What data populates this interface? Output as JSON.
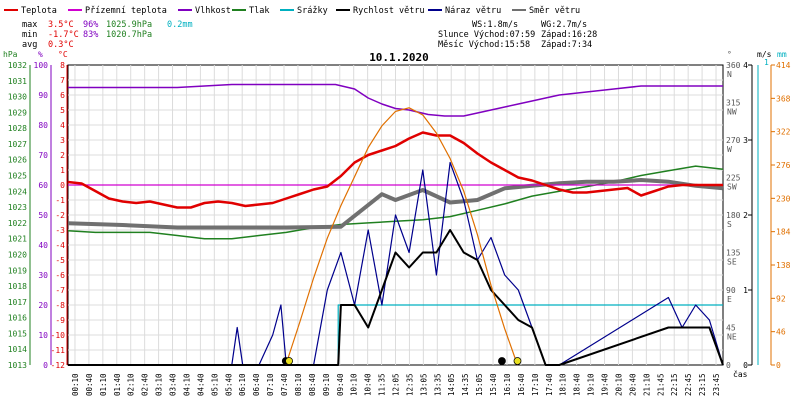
{
  "legend": [
    {
      "label": "Teplota",
      "color": "#e00000"
    },
    {
      "label": "Přízemní teplota",
      "color": "#d000d0"
    },
    {
      "label": "Vlhkost",
      "color": "#8000c0"
    },
    {
      "label": "Tlak",
      "color": "#208020"
    },
    {
      "label": "Srážky",
      "color": "#00b0c0"
    },
    {
      "label": "Rychlost větru",
      "color": "#000000"
    },
    {
      "label": "Náraz větru",
      "color": "#00008c"
    },
    {
      "label": "Směr větru",
      "color": "#707070"
    }
  ],
  "stats": {
    "max_label": "max",
    "max_temp": "3.5°C",
    "max_hum": "96%",
    "max_press": "1025.9hPa",
    "max_rain": "0.2mm",
    "min_label": "min",
    "min_temp": "-1.7°C",
    "min_hum": "83%",
    "min_press": "1020.7hPa",
    "avg_label": "avg",
    "avg_temp": "0.3°C"
  },
  "info": {
    "ws": "WS:1.8m/s",
    "wg": "WG:2.7m/s",
    "sun": "Slunce Východ:07:59",
    "sun_set": "Západ:16:28",
    "moon": "Měsíc  Východ:15:58",
    "moon_set": "Západ:7:34"
  },
  "title": "10.1.2020",
  "axes": {
    "hpa_unit": "hPa",
    "pct_unit": "%",
    "c_unit": "°C",
    "deg_unit": "°",
    "ms_unit": "m/s",
    "mm_unit": "mm",
    "hpa_ticks": [
      "1032",
      "1031",
      "1030",
      "1029",
      "1028",
      "1027",
      "1026",
      "1025",
      "1024",
      "1023",
      "1022",
      "1021",
      "1020",
      "1019",
      "1018",
      "1017",
      "1016",
      "1015",
      "1014",
      "1013"
    ],
    "pct_ticks": [
      "100",
      "90",
      "80",
      "70",
      "60",
      "50",
      "40",
      "30",
      "20",
      "10",
      "0"
    ],
    "c_ticks": [
      "8",
      "7",
      "6",
      "5",
      "4",
      "3",
      "2",
      "1",
      "0",
      "-1",
      "-2",
      "-3",
      "-4",
      "-5",
      "-6",
      "-7",
      "-8",
      "-9",
      "-10",
      "-11",
      "-12"
    ],
    "deg_ticks": [
      {
        "v": "360",
        "d": "N"
      },
      {
        "v": "315",
        "d": "NW"
      },
      {
        "v": "270",
        "d": "W"
      },
      {
        "v": "225",
        "d": "SW"
      },
      {
        "v": "180",
        "d": "S"
      },
      {
        "v": "135",
        "d": "SE"
      },
      {
        "v": "90",
        "d": "E"
      },
      {
        "v": "45",
        "d": "NE"
      },
      {
        "v": "0",
        "d": ""
      }
    ],
    "ms_ticks": [
      "4",
      "3",
      "2",
      "1",
      "0"
    ],
    "mm_top": "1",
    "mm_ticks": [
      "414",
      "368",
      "322",
      "276",
      "230",
      "184",
      "138",
      "92",
      "46",
      "0"
    ],
    "time_ticks": [
      "00:10",
      "00:40",
      "01:10",
      "01:40",
      "02:10",
      "02:40",
      "03:10",
      "03:40",
      "04:10",
      "04:40",
      "05:10",
      "05:40",
      "06:10",
      "06:40",
      "07:10",
      "07:40",
      "08:10",
      "08:40",
      "09:10",
      "09:40",
      "10:10",
      "10:40",
      "11:35",
      "12:05",
      "12:35",
      "13:05",
      "13:35",
      "14:05",
      "14:35",
      "15:05",
      "15:40",
      "16:10",
      "16:40",
      "17:10",
      "17:40",
      "18:10",
      "18:40",
      "19:10",
      "19:40",
      "20:10",
      "20:40",
      "21:10",
      "21:45",
      "22:15",
      "22:45",
      "23:15",
      "23:45"
    ],
    "cas_label": "čas"
  },
  "chart_data": {
    "type": "line",
    "title": "10.1.2020",
    "x_unit": "hour of day",
    "series": [
      {
        "name": "Teplota",
        "color": "#e00000",
        "x": [
          0.0,
          0.5,
          1.0,
          1.5,
          2.0,
          2.5,
          3.0,
          3.5,
          4.0,
          4.5,
          5.0,
          5.5,
          6.0,
          6.5,
          7.0,
          7.5,
          8.0,
          8.5,
          9.0,
          9.5,
          10.0,
          10.5,
          11.0,
          11.5,
          12.0,
          12.5,
          13.0,
          13.5,
          14.0,
          14.5,
          15.0,
          15.5,
          16.0,
          16.5,
          17.0,
          17.5,
          18.0,
          18.5,
          19.0,
          19.5,
          20.0,
          20.5,
          21.0,
          21.5,
          22.0,
          22.5,
          23.0,
          23.5,
          24.0
        ],
        "y": [
          0.2,
          0.1,
          -0.4,
          -0.9,
          -1.1,
          -1.2,
          -1.1,
          -1.3,
          -1.5,
          -1.5,
          -1.2,
          -1.1,
          -1.2,
          -1.4,
          -1.3,
          -1.2,
          -0.9,
          -0.6,
          -0.3,
          -0.1,
          0.6,
          1.5,
          2.0,
          2.3,
          2.6,
          3.1,
          3.5,
          3.3,
          3.3,
          2.8,
          2.1,
          1.5,
          1.0,
          0.5,
          0.3,
          0.0,
          -0.3,
          -0.5,
          -0.5,
          -0.4,
          -0.3,
          -0.2,
          -0.7,
          -0.4,
          -0.1,
          0.0,
          0.0,
          0.0,
          0.0
        ]
      },
      {
        "name": "Přízemní teplota",
        "color": "#d000d0",
        "x": [
          0,
          24
        ],
        "y": [
          0.0,
          0.0
        ]
      },
      {
        "name": "Vlhkost",
        "color": "#8000c0",
        "x": [
          0,
          4,
          6,
          8,
          9.8,
          10.5,
          11,
          11.5,
          12,
          12.5,
          13.2,
          13.8,
          14.5,
          15,
          15.5,
          16,
          16.5,
          17,
          17.5,
          18,
          18.5,
          19,
          20,
          21,
          22,
          23,
          24
        ],
        "y": [
          92.5,
          92.5,
          93.5,
          93.5,
          93.5,
          92,
          89,
          87,
          85.5,
          85,
          83.5,
          83,
          83,
          84,
          85,
          86,
          87,
          88,
          89,
          90,
          90.5,
          91,
          92,
          93,
          93,
          93,
          93
        ]
      },
      {
        "name": "Tlak",
        "color": "#208020",
        "x": [
          0,
          1,
          2,
          3,
          4,
          5,
          6,
          7,
          8,
          9,
          10,
          11,
          12,
          13,
          14,
          15,
          16,
          17,
          18,
          19,
          20,
          21,
          22,
          23,
          24
        ],
        "y": [
          1021.5,
          1021.4,
          1021.4,
          1021.4,
          1021.2,
          1021.0,
          1021.0,
          1021.2,
          1021.4,
          1021.7,
          1021.9,
          1022.0,
          1022.1,
          1022.2,
          1022.4,
          1022.8,
          1023.2,
          1023.7,
          1024.0,
          1024.3,
          1024.6,
          1025.0,
          1025.3,
          1025.6,
          1025.4
        ]
      },
      {
        "name": "Srážky",
        "color": "#00b0c0",
        "x": [
          0,
          9.9,
          9.9,
          24
        ],
        "y": [
          0,
          0,
          0.2,
          0.2
        ]
      },
      {
        "name": "Rychlost větru",
        "color": "#000000",
        "x": [
          0,
          7.5,
          7.6,
          9.9,
          10.0,
          10.5,
          11.0,
          11.5,
          12.0,
          12.5,
          13.0,
          13.5,
          14.0,
          14.5,
          15.0,
          15.5,
          16.0,
          16.5,
          17.0,
          17.5,
          18.0,
          22.0,
          22.5,
          23.0,
          23.5,
          24.0
        ],
        "y": [
          0,
          0,
          0,
          0,
          0.8,
          0.8,
          0.5,
          1.0,
          1.5,
          1.3,
          1.5,
          1.5,
          1.8,
          1.5,
          1.4,
          1.0,
          0.8,
          0.6,
          0.5,
          0,
          0,
          0.5,
          0.5,
          0.5,
          0.5,
          0
        ]
      },
      {
        "name": "Náraz větru",
        "color": "#00008c",
        "x": [
          0,
          6.0,
          6.2,
          6.4,
          7.0,
          7.5,
          7.8,
          8.0,
          9.0,
          9.5,
          10.0,
          10.5,
          11.0,
          11.5,
          12.0,
          12.5,
          13.0,
          13.5,
          14.0,
          14.5,
          15.0,
          15.5,
          16.0,
          16.5,
          17.0,
          17.5,
          18.0,
          22.0,
          22.5,
          23.0,
          23.5,
          24.0
        ],
        "y": [
          0,
          0,
          0.5,
          0,
          0,
          0.4,
          0.8,
          0,
          0,
          1.0,
          1.5,
          0.8,
          1.8,
          0.8,
          2.0,
          1.5,
          2.6,
          1.2,
          2.7,
          2.2,
          1.4,
          1.7,
          1.2,
          1.0,
          0.5,
          0,
          0,
          0.9,
          0.5,
          0.8,
          0.6,
          0
        ]
      },
      {
        "name": "Směr větru",
        "color": "#707070",
        "x": [
          0,
          2,
          4,
          6,
          8,
          10,
          11.5,
          12,
          13,
          14,
          15,
          16,
          17,
          18,
          19,
          20,
          21,
          22,
          23,
          24
        ],
        "y": [
          170,
          168,
          165,
          165,
          165,
          166,
          205,
          198,
          210,
          195,
          198,
          212,
          215,
          218,
          220,
          220,
          222,
          220,
          215,
          212
        ]
      }
    ],
    "sun_curve": {
      "name": "Slunce",
      "color": "#e07000",
      "x": [
        7.98,
        8.5,
        9.0,
        9.5,
        10.0,
        10.5,
        11.0,
        11.5,
        12.0,
        12.5,
        13.0,
        13.5,
        14.0,
        14.5,
        15.0,
        15.5,
        16.0,
        16.47
      ],
      "y": [
        0,
        60,
        120,
        175,
        220,
        260,
        300,
        330,
        350,
        355,
        345,
        320,
        285,
        240,
        180,
        110,
        50,
        0
      ]
    },
    "markers": [
      {
        "name": "sunrise",
        "x": 7.98,
        "y_mm": 0,
        "color": "#000000"
      },
      {
        "name": "moonrise",
        "x": 8.1,
        "y_mm": 0,
        "color": "#e8e020"
      },
      {
        "name": "moonset",
        "x": 15.9,
        "y_mm": 0,
        "color": "#000000"
      },
      {
        "name": "sunset",
        "x": 16.47,
        "y_mm": 0,
        "color": "#e8e020"
      }
    ]
  }
}
